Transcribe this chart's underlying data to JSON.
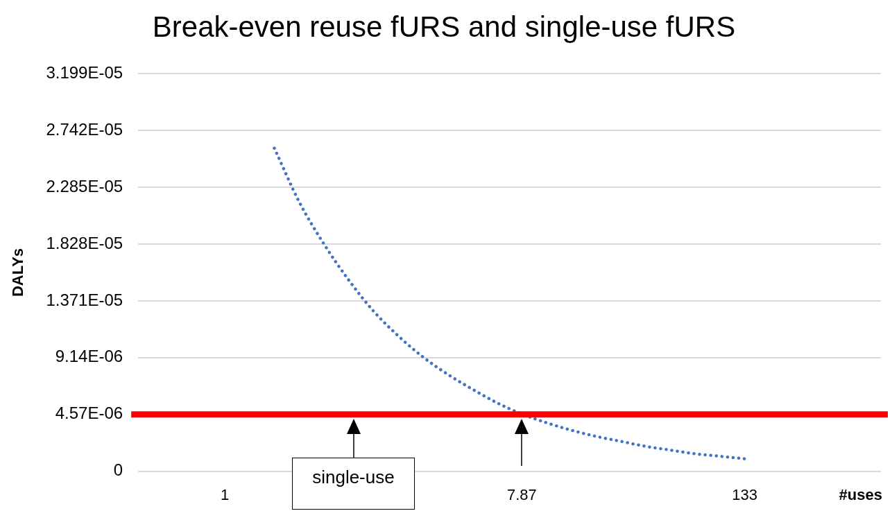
{
  "chart_data": {
    "type": "line",
    "title": "Break-even reuse fURS and single-use fURS",
    "xlabel": "#uses",
    "ylabel": "DALYs",
    "categories": [
      null,
      null,
      null,
      "1",
      null,
      null,
      null,
      null,
      null,
      null,
      null,
      null,
      null,
      null,
      null,
      "7.87",
      null,
      null,
      null,
      null,
      null,
      null,
      null,
      null,
      "133",
      null,
      null,
      null,
      null,
      null
    ],
    "series": [
      {
        "color": "#4472c4",
        "values": [
          null,
          null,
          null,
          null,
          null,
          2.6e-05,
          2.17e-05,
          1.83e-05,
          1.54e-05,
          1.29e-05,
          1.09e-05,
          9.2e-06,
          7.8e-06,
          6.6e-06,
          5.5e-06,
          4.6e-06,
          3.9e-06,
          3.3e-06,
          2.8e-06,
          2.4e-06,
          2e-06,
          1.7e-06,
          1.4e-06,
          1.2e-06,
          1e-06,
          null,
          null,
          null,
          null,
          null
        ]
      }
    ],
    "ylim": [
      0,
      3.199e-05
    ],
    "yticks": [
      0,
      {
        "value": 4.57e-06,
        "label": "4.57E-06"
      },
      {
        "value": 9.14e-06,
        "label": "9.14E-06"
      },
      {
        "value": 1.371e-05,
        "label": "1.371E-05"
      },
      {
        "value": 1.828e-05,
        "label": "1.828E-05"
      },
      {
        "value": 2.285e-05,
        "label": "2.285E-05"
      },
      {
        "value": 2.742e-05,
        "label": "2.742E-05"
      },
      {
        "value": 3.199e-05,
        "label": "3.199E-05"
      }
    ],
    "ref_lines": [
      {
        "axis": "y",
        "value": 4.57e-06,
        "color": "#ff0000"
      }
    ],
    "annotations": [
      "single-use"
    ],
    "grid": "y",
    "legend": false,
    "marker": "none",
    "line_style": "dotted"
  }
}
